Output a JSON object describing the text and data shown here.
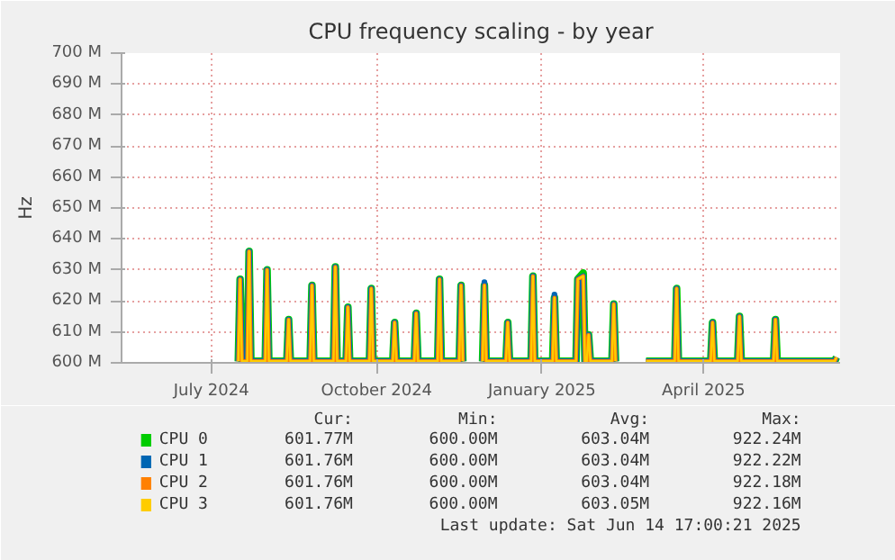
{
  "chart_data": {
    "type": "line",
    "title": "CPU frequency scaling - by year",
    "ylabel": "Hz",
    "xlim": [
      "2024-05-12",
      "2025-06-16"
    ],
    "xticks": [
      {
        "value": "2024-07-01",
        "label": "July 2024"
      },
      {
        "value": "2024-10-01",
        "label": "October 2024"
      },
      {
        "value": "2025-01-01",
        "label": "January 2025"
      },
      {
        "value": "2025-04-01",
        "label": "April 2025"
      }
    ],
    "ylim": [
      600000000,
      700000000
    ],
    "yticks": [
      {
        "value": 600000000,
        "label": "600 M"
      },
      {
        "value": 610000000,
        "label": "610 M"
      },
      {
        "value": 620000000,
        "label": "620 M"
      },
      {
        "value": 630000000,
        "label": "630 M"
      },
      {
        "value": 640000000,
        "label": "640 M"
      },
      {
        "value": 650000000,
        "label": "650 M"
      },
      {
        "value": 660000000,
        "label": "660 M"
      },
      {
        "value": 670000000,
        "label": "670 M"
      },
      {
        "value": 680000000,
        "label": "680 M"
      },
      {
        "value": 690000000,
        "label": "690 M"
      },
      {
        "value": 700000000,
        "label": "700 M"
      }
    ],
    "x": [
      "2024-07-16",
      "2024-07-17",
      "2024-07-18",
      "2024-07-21",
      "2024-07-22",
      "2024-07-23",
      "2024-07-31",
      "2024-08-01",
      "2024-08-02",
      "2024-08-12",
      "2024-08-13",
      "2024-08-14",
      "2024-08-25",
      "2024-08-26",
      "2024-08-27",
      "2024-09-07",
      "2024-09-08",
      "2024-09-09",
      "2024-09-14",
      "2024-09-15",
      "2024-09-16",
      "2024-09-27",
      "2024-09-28",
      "2024-09-29",
      "2024-10-10",
      "2024-10-11",
      "2024-10-12",
      "2024-10-22",
      "2024-10-23",
      "2024-10-24",
      "2024-11-04",
      "2024-11-05",
      "2024-11-06",
      "2024-11-16",
      "2024-11-17",
      "2024-11-18",
      "2024-11-23",
      "2024-11-29",
      "2024-11-30",
      "2024-12-01",
      "2024-12-12",
      "2024-12-13",
      "2024-12-14",
      "2024-12-26",
      "2024-12-27",
      "2024-12-28",
      "2025-01-07",
      "2025-01-08",
      "2025-01-09",
      "2025-01-20",
      "2025-01-21",
      "2025-01-24",
      "2025-01-25",
      "2025-01-26",
      "2025-01-27",
      "2025-01-28",
      "2025-02-09",
      "2025-02-10",
      "2025-02-11",
      "2025-02-19",
      "2025-02-28",
      "2025-03-16",
      "2025-03-17",
      "2025-03-18",
      "2025-04-05",
      "2025-04-06",
      "2025-04-07",
      "2025-04-20",
      "2025-04-21",
      "2025-04-22",
      "2025-05-10",
      "2025-05-11",
      "2025-05-12",
      "2025-06-13",
      "2025-06-14"
    ],
    "series": [
      {
        "name": "CPU 0",
        "color": "#00cc00",
        "values": [
          600500000,
          627000000,
          600500000,
          600500000,
          636000000,
          600500000,
          600500000,
          630000000,
          600500000,
          600500000,
          614000000,
          600500000,
          600500000,
          625000000,
          600500000,
          600500000,
          631000000,
          600500000,
          600500000,
          618000000,
          600500000,
          600500000,
          624000000,
          600500000,
          600500000,
          613000000,
          600500000,
          600500000,
          616000000,
          600500000,
          600500000,
          627000000,
          600500000,
          600500000,
          625000000,
          600500000,
          null,
          600500000,
          625000000,
          600500000,
          600500000,
          613000000,
          600500000,
          600500000,
          628000000,
          600500000,
          600500000,
          621000000,
          600500000,
          600500000,
          627000000,
          629000000,
          600500000,
          600500000,
          609000000,
          600500000,
          600500000,
          619000000,
          600500000,
          null,
          600500000,
          600500000,
          624000000,
          600500000,
          600500000,
          613000000,
          600500000,
          600500000,
          615000000,
          600500000,
          600500000,
          614000000,
          600500000,
          600500000,
          601800000
        ]
      },
      {
        "name": "CPU 1",
        "color": "#0066b3",
        "values": [
          600500000,
          627000000,
          600500000,
          600500000,
          636000000,
          600500000,
          600500000,
          630000000,
          600500000,
          600500000,
          614000000,
          600500000,
          600500000,
          625000000,
          600500000,
          600500000,
          631000000,
          600500000,
          600500000,
          618000000,
          600500000,
          600500000,
          624000000,
          600500000,
          600500000,
          613000000,
          600500000,
          600500000,
          616000000,
          600500000,
          600500000,
          627000000,
          600500000,
          600500000,
          625000000,
          600500000,
          null,
          600500000,
          626000000,
          600500000,
          600500000,
          613000000,
          600500000,
          600500000,
          628000000,
          600500000,
          600500000,
          622000000,
          600500000,
          600500000,
          627000000,
          628000000,
          600500000,
          600500000,
          609000000,
          600500000,
          600500000,
          619000000,
          600500000,
          null,
          600500000,
          600500000,
          624000000,
          600500000,
          600500000,
          613000000,
          600500000,
          600500000,
          615000000,
          600500000,
          600500000,
          614000000,
          600500000,
          600500000,
          601800000
        ]
      },
      {
        "name": "CPU 2",
        "color": "#ff8000",
        "values": [
          600500000,
          627000000,
          600500000,
          600500000,
          636000000,
          600500000,
          600500000,
          630000000,
          600500000,
          600500000,
          614000000,
          600500000,
          600500000,
          625000000,
          600500000,
          600500000,
          631000000,
          600500000,
          600500000,
          618000000,
          600500000,
          600500000,
          624000000,
          600500000,
          600500000,
          613000000,
          600500000,
          600500000,
          616000000,
          600500000,
          600500000,
          627000000,
          600500000,
          600500000,
          625000000,
          600500000,
          null,
          600500000,
          625000000,
          600500000,
          600500000,
          613000000,
          600500000,
          600500000,
          628000000,
          600500000,
          600500000,
          621000000,
          600500000,
          600500000,
          627000000,
          628000000,
          600500000,
          600500000,
          609000000,
          600500000,
          600500000,
          619000000,
          600500000,
          null,
          600500000,
          600500000,
          624000000,
          600500000,
          600500000,
          613000000,
          600500000,
          600500000,
          615000000,
          600500000,
          600500000,
          614000000,
          600500000,
          600500000,
          601800000
        ]
      },
      {
        "name": "CPU 3",
        "color": "#ffcc00",
        "values": [
          600500000,
          627000000,
          600500000,
          600500000,
          636000000,
          600500000,
          600500000,
          630000000,
          600500000,
          600500000,
          614000000,
          600500000,
          600500000,
          625000000,
          600500000,
          600500000,
          631000000,
          600500000,
          600500000,
          618000000,
          600500000,
          600500000,
          624000000,
          600500000,
          600500000,
          613000000,
          600500000,
          600500000,
          616000000,
          600500000,
          600500000,
          627000000,
          600500000,
          600500000,
          625000000,
          600500000,
          null,
          600500000,
          625000000,
          600500000,
          600500000,
          613000000,
          600500000,
          600500000,
          628000000,
          600500000,
          600500000,
          621000000,
          600500000,
          600500000,
          627000000,
          628000000,
          600500000,
          600500000,
          609000000,
          600500000,
          600500000,
          619000000,
          600500000,
          null,
          600500000,
          600500000,
          624000000,
          600500000,
          600500000,
          613000000,
          600500000,
          600500000,
          615000000,
          600500000,
          600500000,
          614000000,
          600500000,
          600500000,
          601800000
        ]
      }
    ],
    "grid": true,
    "legend": "bottom",
    "annotations": [
      "Cur:",
      "Min:",
      "Avg:",
      "Max:",
      "601.77M",
      "600.00M",
      "603.04M",
      "922.24M",
      "601.76M",
      "600.00M",
      "603.04M",
      "922.22M",
      "601.76M",
      "600.00M",
      "603.04M",
      "922.18M",
      "601.76M",
      "600.00M",
      "603.05M",
      "922.16M",
      "Last update: Sat Jun 14 17:00:21 2025"
    ]
  }
}
